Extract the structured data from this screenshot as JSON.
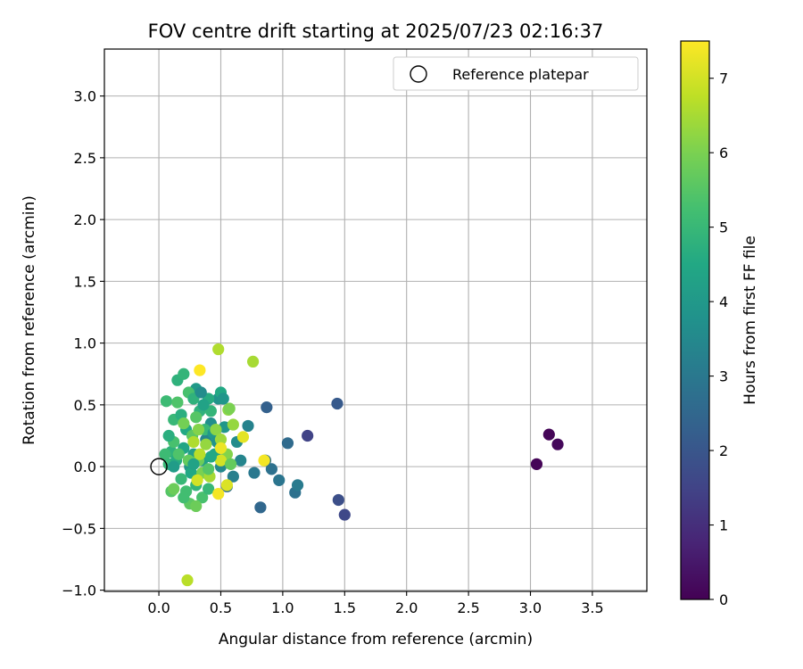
{
  "chart_data": {
    "type": "scatter",
    "title": "FOV centre drift starting at 2025/07/23 02:16:37",
    "xlabel": "Angular distance from reference (arcmin)",
    "ylabel": "Rotation from reference (arcmin)",
    "xlim": [
      -0.44,
      3.94
    ],
    "ylim": [
      -1.01,
      3.38
    ],
    "xticks": [
      0.0,
      0.5,
      1.0,
      1.5,
      2.0,
      2.5,
      3.0,
      3.5
    ],
    "xtick_labels": [
      "0.0",
      "0.5",
      "1.0",
      "1.5",
      "2.0",
      "2.5",
      "3.0",
      "3.5"
    ],
    "yticks": [
      -1.0,
      -0.5,
      0.0,
      0.5,
      1.0,
      1.5,
      2.0,
      2.5,
      3.0
    ],
    "ytick_labels": [
      "−1.0",
      "−0.5",
      "0.0",
      "0.5",
      "1.0",
      "1.5",
      "2.0",
      "2.5",
      "3.0"
    ],
    "grid": true,
    "legend": {
      "placement": "upper-right",
      "entries": [
        "Reference platepar"
      ]
    },
    "reference_point": {
      "x": 0.0,
      "y": 0.0
    },
    "colorbar": {
      "label": "Hours from first FF file",
      "range": [
        0,
        7.5
      ],
      "ticks": [
        0,
        1,
        2,
        3,
        4,
        5,
        6,
        7
      ],
      "tick_labels": [
        "0",
        "1",
        "2",
        "3",
        "4",
        "5",
        "6",
        "7"
      ],
      "colormap": "viridis"
    },
    "series": [
      {
        "points": [
          {
            "x": 3.05,
            "y": 0.02,
            "c": 0.1
          },
          {
            "x": 3.15,
            "y": 0.26,
            "c": 0.1
          },
          {
            "x": 3.22,
            "y": 0.18,
            "c": 0.15
          },
          {
            "x": 1.5,
            "y": -0.39,
            "c": 1.6
          },
          {
            "x": 1.45,
            "y": -0.27,
            "c": 1.8
          },
          {
            "x": 1.2,
            "y": 0.25,
            "c": 1.5
          },
          {
            "x": 1.44,
            "y": 0.51,
            "c": 2.1
          },
          {
            "x": 0.87,
            "y": 0.48,
            "c": 2.3
          },
          {
            "x": 1.04,
            "y": 0.19,
            "c": 2.6
          },
          {
            "x": 0.82,
            "y": -0.33,
            "c": 2.5
          },
          {
            "x": 1.1,
            "y": -0.21,
            "c": 2.8
          },
          {
            "x": 1.12,
            "y": -0.15,
            "c": 3.1
          },
          {
            "x": 0.97,
            "y": -0.11,
            "c": 2.9
          },
          {
            "x": 0.91,
            "y": -0.02,
            "c": 2.8
          },
          {
            "x": 0.86,
            "y": 0.05,
            "c": 2.7
          },
          {
            "x": 0.77,
            "y": -0.05,
            "c": 3.0
          },
          {
            "x": 0.72,
            "y": 0.33,
            "c": 3.3
          },
          {
            "x": 0.55,
            "y": -0.16,
            "c": 2.7
          },
          {
            "x": 0.6,
            "y": -0.08,
            "c": 3.2
          },
          {
            "x": 0.66,
            "y": 0.05,
            "c": 3.4
          },
          {
            "x": 0.63,
            "y": 0.2,
            "c": 3.6
          },
          {
            "x": 0.5,
            "y": 0.0,
            "c": 3.5
          },
          {
            "x": 0.48,
            "y": 0.55,
            "c": 3.8
          },
          {
            "x": 0.53,
            "y": 0.32,
            "c": 3.9
          },
          {
            "x": 0.42,
            "y": 0.35,
            "c": 3.7
          },
          {
            "x": 0.38,
            "y": 0.22,
            "c": 3.4
          },
          {
            "x": 0.3,
            "y": 0.63,
            "c": 4.0
          },
          {
            "x": 0.25,
            "y": 0.0,
            "c": 3.9
          },
          {
            "x": 0.35,
            "y": 0.05,
            "c": 4.2
          },
          {
            "x": 0.45,
            "y": 0.1,
            "c": 4.4
          },
          {
            "x": 0.5,
            "y": 0.6,
            "c": 4.5
          },
          {
            "x": 0.4,
            "y": 0.55,
            "c": 4.6
          },
          {
            "x": 0.33,
            "y": 0.45,
            "c": 4.8
          },
          {
            "x": 0.15,
            "y": 0.7,
            "c": 4.8
          },
          {
            "x": 0.2,
            "y": 0.75,
            "c": 4.9
          },
          {
            "x": 0.12,
            "y": 0.38,
            "c": 5.0
          },
          {
            "x": 0.18,
            "y": 0.42,
            "c": 4.7
          },
          {
            "x": 0.22,
            "y": 0.3,
            "c": 4.5
          },
          {
            "x": 0.1,
            "y": 0.12,
            "c": 4.8
          },
          {
            "x": 0.05,
            "y": 0.1,
            "c": 5.1
          },
          {
            "x": 0.08,
            "y": 0.02,
            "c": 5.0
          },
          {
            "x": 0.14,
            "y": 0.05,
            "c": 4.6
          },
          {
            "x": 0.2,
            "y": 0.15,
            "c": 4.4
          },
          {
            "x": 0.28,
            "y": 0.1,
            "c": 4.2
          },
          {
            "x": 0.26,
            "y": -0.05,
            "c": 4.5
          },
          {
            "x": 0.18,
            "y": -0.1,
            "c": 5.0
          },
          {
            "x": 0.22,
            "y": -0.2,
            "c": 5.2
          },
          {
            "x": 0.3,
            "y": -0.15,
            "c": 4.9
          },
          {
            "x": 0.35,
            "y": -0.25,
            "c": 5.3
          },
          {
            "x": 0.4,
            "y": -0.18,
            "c": 5.0
          },
          {
            "x": 0.25,
            "y": -0.3,
            "c": 5.6
          },
          {
            "x": 0.3,
            "y": -0.32,
            "c": 5.8
          },
          {
            "x": 0.1,
            "y": -0.2,
            "c": 5.5
          },
          {
            "x": 0.12,
            "y": 0.2,
            "c": 5.3
          },
          {
            "x": 0.06,
            "y": 0.53,
            "c": 5.1
          },
          {
            "x": 0.24,
            "y": 0.6,
            "c": 5.3
          },
          {
            "x": 0.3,
            "y": 0.4,
            "c": 5.5
          },
          {
            "x": 0.37,
            "y": 0.3,
            "c": 5.0
          },
          {
            "x": 0.42,
            "y": 0.45,
            "c": 4.9
          },
          {
            "x": 0.15,
            "y": 0.52,
            "c": 5.4
          },
          {
            "x": 0.28,
            "y": 0.55,
            "c": 4.8
          },
          {
            "x": 0.36,
            "y": 0.5,
            "c": 4.3
          },
          {
            "x": 0.44,
            "y": 0.27,
            "c": 4.0
          },
          {
            "x": 0.47,
            "y": 0.2,
            "c": 3.8
          },
          {
            "x": 0.2,
            "y": -0.25,
            "c": 5.2
          },
          {
            "x": 0.27,
            "y": 0.25,
            "c": 5.6
          },
          {
            "x": 0.32,
            "y": 0.05,
            "c": 5.8
          },
          {
            "x": 0.35,
            "y": -0.05,
            "c": 6.0
          },
          {
            "x": 0.46,
            "y": 0.3,
            "c": 6.2
          },
          {
            "x": 0.38,
            "y": 0.18,
            "c": 6.3
          },
          {
            "x": 0.55,
            "y": 0.1,
            "c": 6.1
          },
          {
            "x": 0.56,
            "y": 0.46,
            "c": 6.2
          },
          {
            "x": 0.6,
            "y": 0.34,
            "c": 6.3
          },
          {
            "x": 0.57,
            "y": 0.47,
            "c": 6.0
          },
          {
            "x": 0.5,
            "y": 0.22,
            "c": 6.4
          },
          {
            "x": 0.32,
            "y": 0.3,
            "c": 6.1
          },
          {
            "x": 0.28,
            "y": 0.2,
            "c": 6.6
          },
          {
            "x": 0.41,
            "y": -0.08,
            "c": 6.5
          },
          {
            "x": 0.76,
            "y": 0.85,
            "c": 6.5
          },
          {
            "x": 0.48,
            "y": 0.95,
            "c": 6.6
          },
          {
            "x": 0.23,
            "y": -0.92,
            "c": 6.7
          },
          {
            "x": 0.12,
            "y": 0.0,
            "c": 4.1
          },
          {
            "x": 0.08,
            "y": 0.25,
            "c": 4.7
          },
          {
            "x": 0.16,
            "y": 0.1,
            "c": 5.4
          },
          {
            "x": 0.24,
            "y": 0.05,
            "c": 5.7
          },
          {
            "x": 0.34,
            "y": 0.6,
            "c": 3.6
          },
          {
            "x": 0.52,
            "y": 0.55,
            "c": 3.9
          },
          {
            "x": 0.33,
            "y": 0.78,
            "c": 7.5
          },
          {
            "x": 0.5,
            "y": 0.15,
            "c": 7.3
          },
          {
            "x": 0.68,
            "y": 0.24,
            "c": 7.2
          },
          {
            "x": 0.85,
            "y": 0.05,
            "c": 7.4
          },
          {
            "x": 0.55,
            "y": -0.15,
            "c": 7.1
          },
          {
            "x": 0.48,
            "y": -0.22,
            "c": 7.4
          },
          {
            "x": 0.31,
            "y": -0.11,
            "c": 7.0
          },
          {
            "x": 0.5,
            "y": 0.05,
            "c": 7.0
          },
          {
            "x": 0.28,
            "y": 0.02,
            "c": 4.3
          },
          {
            "x": 0.42,
            "y": 0.08,
            "c": 4.5
          },
          {
            "x": 0.2,
            "y": 0.35,
            "c": 5.9
          },
          {
            "x": 0.12,
            "y": -0.18,
            "c": 5.8
          },
          {
            "x": 0.33,
            "y": 0.1,
            "c": 6.7
          },
          {
            "x": 0.4,
            "y": -0.02,
            "c": 5.5
          },
          {
            "x": 0.58,
            "y": 0.02,
            "c": 5.7
          }
        ]
      }
    ]
  }
}
